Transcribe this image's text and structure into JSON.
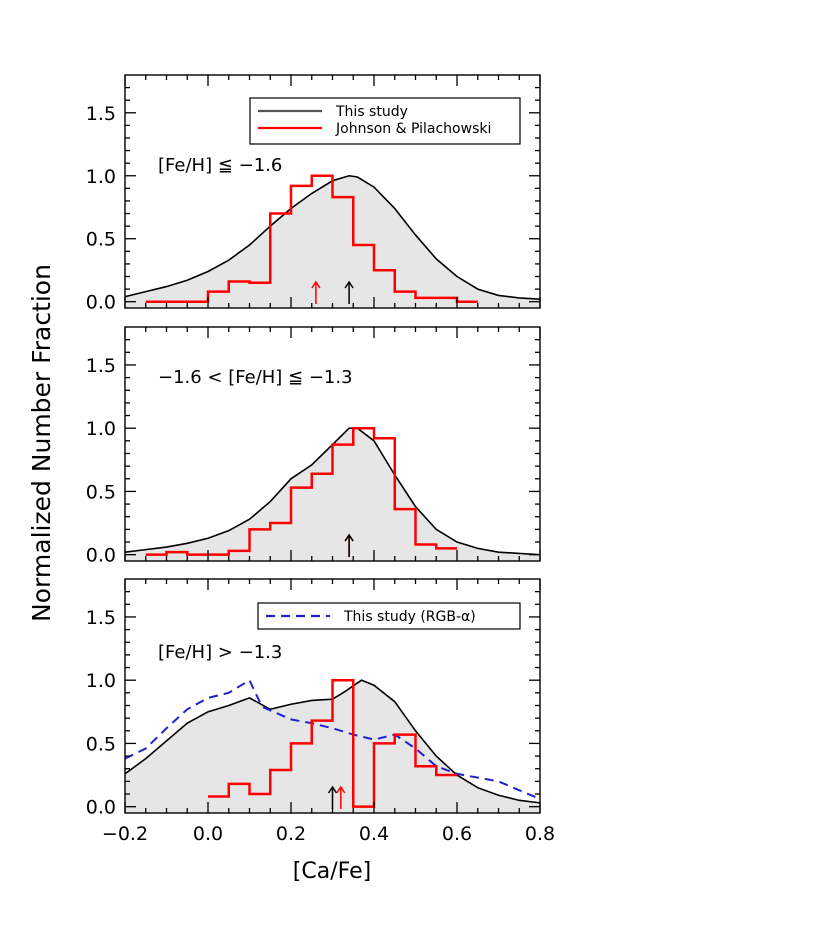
{
  "figure": {
    "ylabel": "Normalized Number Fraction",
    "xlabel": "[Ca/Fe]"
  },
  "chart_data": [
    {
      "type": "line",
      "panel": "top",
      "annotation": "[Fe/H] ≦ −1.6",
      "xlim": [
        -0.2,
        0.8
      ],
      "ylim": [
        -0.05,
        1.8
      ],
      "xticks": [
        "−0.2",
        "0.0",
        "0.2",
        "0.4",
        "0.6",
        "0.8"
      ],
      "yticks": [
        "0.0",
        "0.5",
        "1.0",
        "1.5"
      ],
      "legend": {
        "placement": "top-right",
        "entries": [
          {
            "label": "This study",
            "color": "#555555",
            "style": "solid"
          },
          {
            "label": "Johnson & Pilachowski",
            "color": "#ff0000",
            "style": "solid"
          }
        ]
      },
      "series": [
        {
          "color": "#000000",
          "style": "filled-curve",
          "x": [
            -0.2,
            -0.15,
            -0.1,
            -0.05,
            0.0,
            0.05,
            0.1,
            0.15,
            0.2,
            0.25,
            0.3,
            0.34,
            0.36,
            0.4,
            0.45,
            0.5,
            0.55,
            0.6,
            0.65,
            0.7,
            0.75,
            0.8
          ],
          "y": [
            0.04,
            0.08,
            0.12,
            0.17,
            0.24,
            0.33,
            0.45,
            0.6,
            0.74,
            0.86,
            0.96,
            1.0,
            0.99,
            0.91,
            0.74,
            0.53,
            0.34,
            0.2,
            0.1,
            0.05,
            0.03,
            0.02
          ]
        },
        {
          "color": "#ff0000",
          "style": "histogram",
          "bin_width": 0.05,
          "x": [
            -0.15,
            -0.1,
            -0.05,
            0.0,
            0.05,
            0.1,
            0.15,
            0.2,
            0.25,
            0.3,
            0.35,
            0.4,
            0.45,
            0.5,
            0.55,
            0.6
          ],
          "y": [
            0.0,
            0.0,
            0.0,
            0.08,
            0.16,
            0.15,
            0.7,
            0.92,
            1.0,
            0.83,
            0.45,
            0.25,
            0.08,
            0.03,
            0.03,
            0.0
          ]
        }
      ],
      "markers": [
        {
          "x": 0.26,
          "color": "#ff0000"
        },
        {
          "x": 0.34,
          "color": "#000000"
        }
      ]
    },
    {
      "type": "line",
      "panel": "middle",
      "annotation": "−1.6 < [Fe/H] ≦ −1.3",
      "xlim": [
        -0.2,
        0.8
      ],
      "ylim": [
        -0.05,
        1.8
      ],
      "xticks": [
        "−0.2",
        "0.0",
        "0.2",
        "0.4",
        "0.6",
        "0.8"
      ],
      "yticks": [
        "0.0",
        "0.5",
        "1.0",
        "1.5"
      ],
      "series": [
        {
          "color": "#000000",
          "style": "filled-curve",
          "x": [
            -0.2,
            -0.15,
            -0.1,
            -0.05,
            0.0,
            0.05,
            0.1,
            0.15,
            0.2,
            0.25,
            0.3,
            0.34,
            0.36,
            0.4,
            0.45,
            0.5,
            0.55,
            0.6,
            0.65,
            0.7,
            0.75,
            0.8
          ],
          "y": [
            0.02,
            0.04,
            0.06,
            0.09,
            0.13,
            0.19,
            0.28,
            0.42,
            0.6,
            0.71,
            0.87,
            1.0,
            1.0,
            0.9,
            0.63,
            0.38,
            0.2,
            0.1,
            0.05,
            0.02,
            0.01,
            0.0
          ]
        },
        {
          "color": "#ff0000",
          "style": "histogram",
          "bin_width": 0.05,
          "x": [
            -0.15,
            -0.1,
            -0.05,
            0.0,
            0.05,
            0.1,
            0.15,
            0.2,
            0.25,
            0.3,
            0.35,
            0.4,
            0.45,
            0.5,
            0.55
          ],
          "y": [
            0.0,
            0.02,
            0.0,
            0.0,
            0.03,
            0.2,
            0.25,
            0.53,
            0.64,
            0.87,
            1.0,
            0.92,
            0.36,
            0.08,
            0.05
          ]
        }
      ],
      "markers": [
        {
          "x": 0.34,
          "color": "#ff0000"
        },
        {
          "x": 0.34,
          "color": "#000000"
        }
      ]
    },
    {
      "type": "line",
      "panel": "bottom",
      "annotation": "[Fe/H] > −1.3",
      "xlim": [
        -0.2,
        0.8
      ],
      "ylim": [
        -0.05,
        1.8
      ],
      "xticks": [
        "−0.2",
        "0.0",
        "0.2",
        "0.4",
        "0.6",
        "0.8"
      ],
      "yticks": [
        "0.0",
        "0.5",
        "1.0",
        "1.5"
      ],
      "legend": {
        "placement": "top-right",
        "entries": [
          {
            "label": "This study (RGB-α)",
            "color": "#2222cc",
            "style": "dashed"
          }
        ]
      },
      "series": [
        {
          "color": "#000000",
          "style": "filled-curve",
          "x": [
            -0.2,
            -0.15,
            -0.1,
            -0.05,
            0.0,
            0.05,
            0.1,
            0.15,
            0.2,
            0.25,
            0.3,
            0.33,
            0.37,
            0.4,
            0.45,
            0.5,
            0.55,
            0.6,
            0.65,
            0.7,
            0.75,
            0.8
          ],
          "y": [
            0.26,
            0.38,
            0.52,
            0.66,
            0.75,
            0.8,
            0.86,
            0.77,
            0.81,
            0.84,
            0.85,
            0.91,
            1.0,
            0.96,
            0.83,
            0.6,
            0.4,
            0.25,
            0.15,
            0.09,
            0.05,
            0.03
          ]
        },
        {
          "color": "#2222cc",
          "style": "dashed",
          "x": [
            -0.2,
            -0.15,
            -0.1,
            -0.05,
            0.0,
            0.05,
            0.1,
            0.13,
            0.2,
            0.25,
            0.3,
            0.35,
            0.4,
            0.45,
            0.5,
            0.55,
            0.6,
            0.65,
            0.7,
            0.75,
            0.8
          ],
          "y": [
            0.38,
            0.46,
            0.62,
            0.77,
            0.86,
            0.9,
            1.0,
            0.79,
            0.69,
            0.66,
            0.62,
            0.57,
            0.53,
            0.57,
            0.46,
            0.32,
            0.26,
            0.23,
            0.2,
            0.13,
            0.06
          ]
        },
        {
          "color": "#ff0000",
          "style": "histogram",
          "bin_width": 0.05,
          "x": [
            0.0,
            0.05,
            0.1,
            0.15,
            0.2,
            0.25,
            0.3,
            0.35,
            0.4,
            0.45,
            0.5,
            0.55
          ],
          "y": [
            0.08,
            0.18,
            0.1,
            0.29,
            0.5,
            0.68,
            1.0,
            0.0,
            0.5,
            0.57,
            0.32,
            0.25
          ]
        }
      ],
      "markers": [
        {
          "x": 0.3,
          "color": "#000000"
        },
        {
          "x": 0.32,
          "color": "#ff0000"
        }
      ]
    }
  ]
}
